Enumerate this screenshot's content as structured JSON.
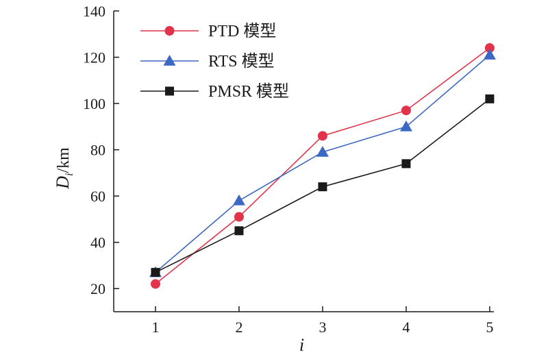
{
  "chart_data": {
    "type": "line",
    "x": [
      1,
      2,
      3,
      4,
      5
    ],
    "xlabel": "i",
    "ylabel": {
      "main": "D",
      "subscript": "i",
      "unit": "/km"
    },
    "xlim": [
      0.5,
      5.05
    ],
    "ylim": [
      10,
      140
    ],
    "yticks": [
      20,
      40,
      60,
      80,
      100,
      120,
      140
    ],
    "xticks": [
      1,
      2,
      3,
      4,
      5
    ],
    "grid": false,
    "legend_position": "top-left",
    "series": [
      {
        "name": "PTD 模型",
        "color": "#e2334a",
        "marker": "circle",
        "values": [
          22,
          51,
          86,
          97,
          124
        ]
      },
      {
        "name": "RTS  模型",
        "color": "#3b68c2",
        "marker": "triangle",
        "values": [
          27,
          58,
          79,
          90,
          121
        ]
      },
      {
        "name": "PMSR 模型",
        "color": "#1a1a1a",
        "marker": "square",
        "values": [
          27,
          45,
          64,
          74,
          102
        ]
      }
    ]
  }
}
